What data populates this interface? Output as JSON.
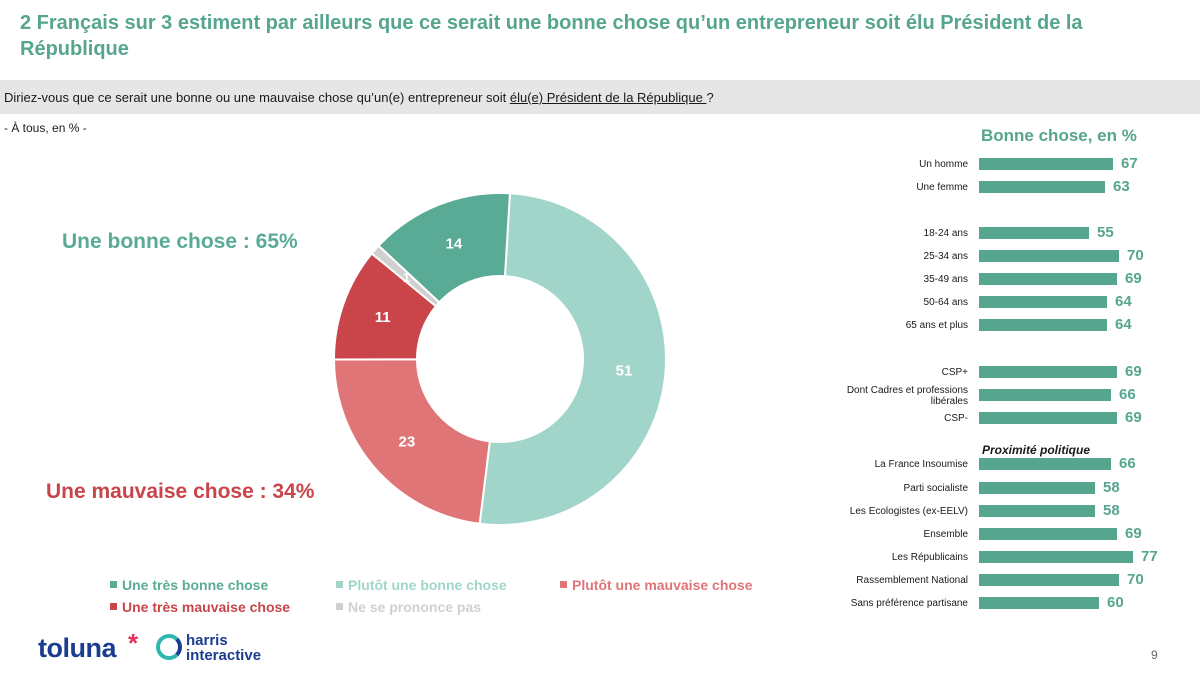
{
  "title": "2 Français sur 3 estiment par ailleurs que ce serait une bonne chose qu’un entrepreneur soit élu Président de la République",
  "question": {
    "prefix": "Diriez-vous que ce serait une bonne ou une mauvaise chose qu’un(e) entrepreneur soit ",
    "underlined": "élu(e) Président de la République ",
    "suffix": "?"
  },
  "base": "- À tous, en % -",
  "totals": {
    "good": "Une bonne chose : 65%",
    "bad": "Une mauvaise chose : 34%"
  },
  "right_panel": {
    "title": "Bonne chose, en %",
    "subheading": "Proximité politique"
  },
  "legend": [
    {
      "label": "Une très bonne chose",
      "color": "#5aab96"
    },
    {
      "label": "Plutôt une bonne chose",
      "color": "#a1d5ca"
    },
    {
      "label": "Plutôt une mauvaise chose",
      "color": "#e07577"
    },
    {
      "label": "Une très mauvaise chose",
      "color": "#c9454a"
    },
    {
      "label": "Ne se prononce pas",
      "color": "#d0d0d0"
    }
  ],
  "logos": {
    "toluna": "toluna",
    "star": "*",
    "harris_line1": "harris",
    "harris_line2": "interactive"
  },
  "page_number": "9",
  "chart_data": [
    {
      "type": "pie",
      "donut": true,
      "slices": [
        {
          "label": "Plutôt une bonne chose",
          "value": 51,
          "color": "#a1d5ca"
        },
        {
          "label": "Plutôt une mauvaise chose",
          "value": 23,
          "color": "#e07577"
        },
        {
          "label": "Une très mauvaise chose",
          "value": 11,
          "color": "#c9454a"
        },
        {
          "label": "Ne se prononce pas",
          "value": 1,
          "color": "#d0d0d0"
        },
        {
          "label": "Une très bonne chose",
          "value": 14,
          "color": "#5aab96"
        }
      ]
    },
    {
      "type": "bar",
      "orientation": "horizontal",
      "title": "Bonne chose, en %",
      "color": "#55a58f",
      "xlim": [
        0,
        100
      ],
      "categories": [
        "Un homme",
        "Une femme",
        "18-24 ans",
        "25-34 ans",
        "35-49 ans",
        "50-64 ans",
        "65 ans et plus",
        "CSP+",
        "Dont Cadres et professions libérales",
        "CSP-",
        "La France Insoumise",
        "Parti socialiste",
        "Les Ecologistes (ex-EELV)",
        "Ensemble",
        "Les Républicains",
        "Rassemblement National",
        "Sans préférence partisane"
      ],
      "values": [
        67,
        63,
        55,
        70,
        69,
        64,
        64,
        69,
        66,
        69,
        66,
        58,
        58,
        69,
        77,
        70,
        60
      ]
    }
  ]
}
